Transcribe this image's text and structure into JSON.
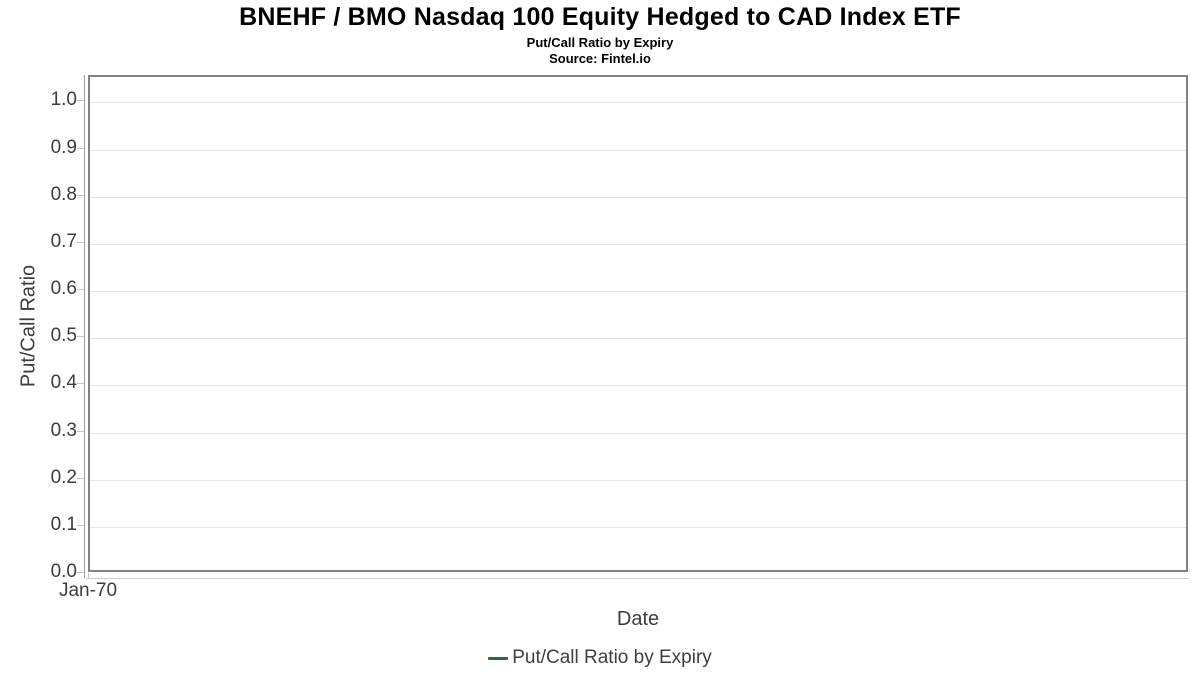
{
  "header": {
    "title": "BNEHF / BMO Nasdaq 100 Equity Hedged to CAD Index ETF",
    "subtitle": "Put/Call Ratio by Expiry",
    "source": "Source: Fintel.io"
  },
  "colors": {
    "series_green": "#2d6a3b",
    "plot_border": "#828282",
    "gridline": "#e5e5e5",
    "tick_label": "#3d3d3d"
  },
  "chart_data": {
    "type": "line",
    "title": "BNEHF / BMO Nasdaq 100 Equity Hedged to CAD Index ETF",
    "subtitle": "Put/Call Ratio by Expiry",
    "source": "Source: Fintel.io",
    "xlabel": "Date",
    "ylabel": "Put/Call Ratio",
    "xticks": [
      "Jan-70"
    ],
    "yticks": [
      "0.0",
      "0.1",
      "0.2",
      "0.3",
      "0.4",
      "0.5",
      "0.6",
      "0.7",
      "0.8",
      "0.9",
      "1.0"
    ],
    "ylim": [
      0,
      1.054
    ],
    "grid": true,
    "legend": {
      "position": "bottom",
      "entries": [
        {
          "label": "Put/Call Ratio by Expiry",
          "color": "#2d6a3b"
        }
      ]
    },
    "series": [
      {
        "name": "Put/Call Ratio by Expiry",
        "color": "#2d6a3b",
        "x": [],
        "values": []
      }
    ]
  }
}
